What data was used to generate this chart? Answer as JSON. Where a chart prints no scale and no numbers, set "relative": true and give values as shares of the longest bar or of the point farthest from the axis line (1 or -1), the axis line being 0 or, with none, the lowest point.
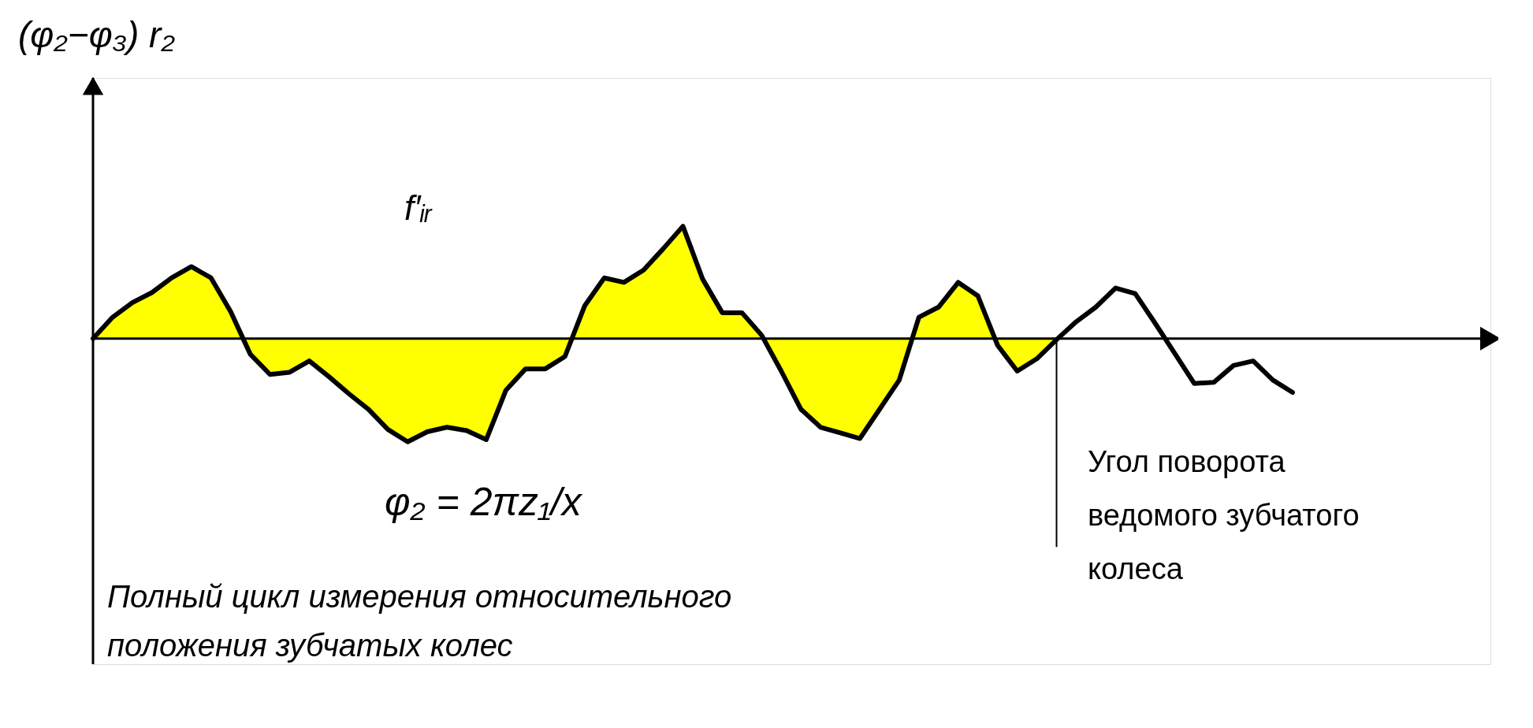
{
  "chart_data": {
    "type": "line",
    "relative": true,
    "ylabel": "(φ₂−φ₃) r₂",
    "xlabel": "Угол поворота\nведомого зубчатого\n колеса",
    "annotations": [
      "f′ᵢᵣ",
      "φ₂ = 2πz₁/x",
      "Полный цикл измерения относительного\nположения зубчатых колес"
    ],
    "categories": [
      null,
      null,
      null,
      null,
      null,
      null,
      null,
      null,
      null,
      null,
      null,
      null,
      null,
      null,
      null,
      null,
      null,
      null,
      null,
      null,
      null,
      null,
      null,
      null,
      null,
      null,
      null,
      null,
      null,
      null,
      null,
      null,
      null,
      null,
      null,
      null,
      null,
      null,
      null,
      null,
      null,
      null,
      null,
      null,
      null,
      null,
      null,
      null,
      null,
      null,
      null,
      null,
      null,
      null,
      null,
      null,
      null,
      null,
      null,
      null,
      null,
      null
    ],
    "series": [
      {
        "color": "#000000",
        "values": [
          0,
          0.19,
          0.32,
          0.41,
          0.54,
          0.64,
          0.54,
          0.24,
          -0.14,
          -0.32,
          -0.3,
          -0.2,
          -0.34,
          -0.49,
          -0.63,
          -0.81,
          -0.92,
          -0.83,
          -0.79,
          -0.82,
          -0.9,
          -0.46,
          -0.27,
          -0.27,
          -0.16,
          0.29,
          0.54,
          0.5,
          0.61,
          0.8,
          1,
          0.53,
          0.23,
          0.23,
          0.03,
          -0.29,
          -0.63,
          -0.79,
          -0.84,
          -0.89,
          -0.63,
          -0.37,
          0.19,
          0.28,
          0.5,
          0.38,
          -0.06,
          -0.29,
          -0.18,
          -0.01,
          0.15,
          0.28,
          0.45,
          0.4,
          0.14,
          -0.13,
          -0.4,
          -0.39,
          -0.24,
          -0.2,
          -0.37,
          -0.48
        ]
      },
      {
        "type": "area",
        "color": "#ffff00",
        "values": [
          0,
          0.19,
          0.32,
          0.41,
          0.54,
          0.64,
          0.54,
          0.24,
          -0.14,
          -0.32,
          -0.3,
          -0.2,
          -0.34,
          -0.49,
          -0.63,
          -0.81,
          -0.92,
          -0.83,
          -0.79,
          -0.82,
          -0.9,
          -0.46,
          -0.27,
          -0.27,
          -0.16,
          0.29,
          0.54,
          0.5,
          0.61,
          0.8,
          1,
          0.53,
          0.23,
          0.23,
          0.03,
          -0.29,
          -0.63,
          -0.79,
          -0.84,
          -0.89,
          -0.63,
          -0.37,
          0.19,
          0.28,
          0.5,
          0.38,
          -0.06,
          -0.29,
          -0.18,
          -0.01,
          null,
          null,
          null,
          null,
          null,
          null,
          null,
          null,
          null,
          null,
          null,
          null
        ]
      }
    ]
  }
}
